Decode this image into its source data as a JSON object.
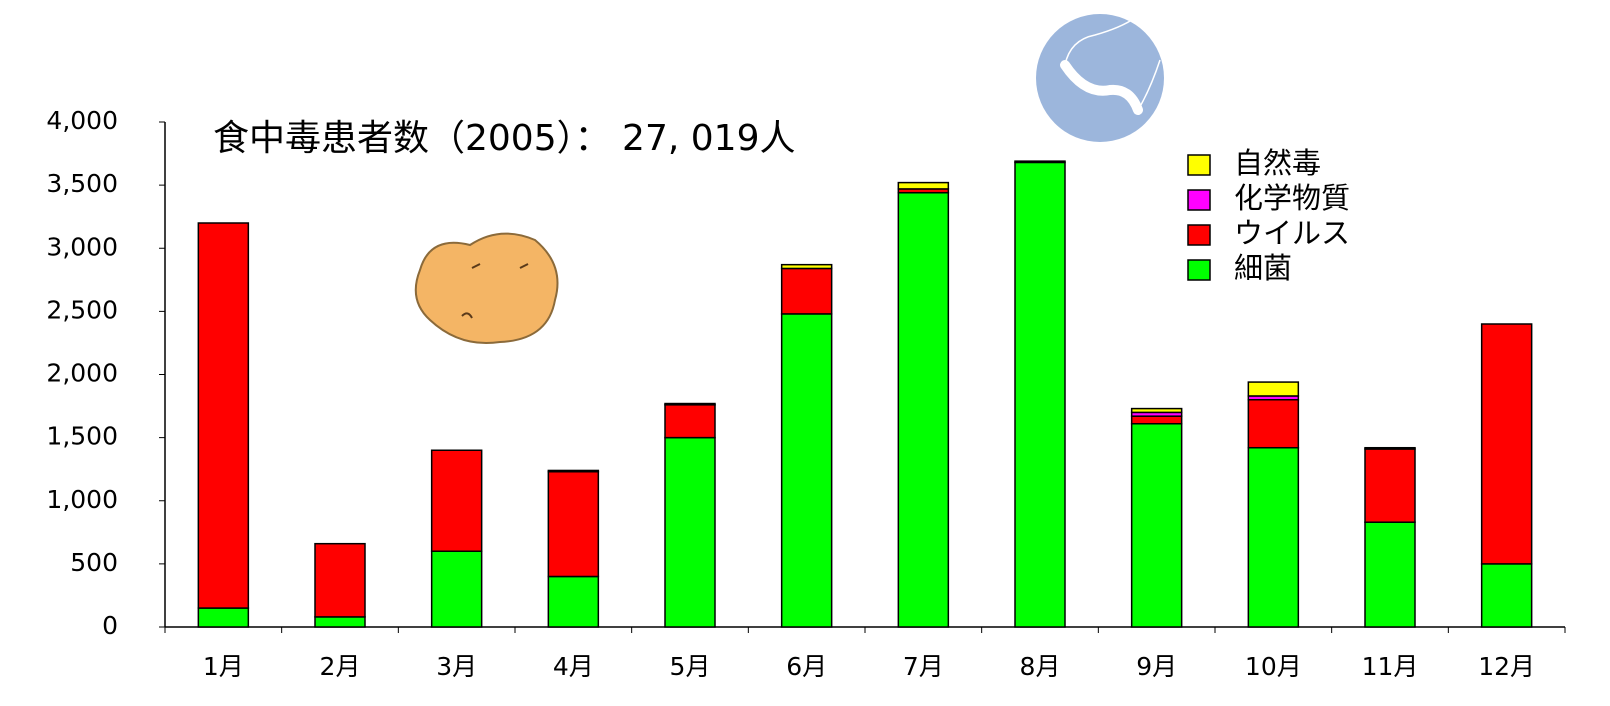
{
  "chart_data": {
    "type": "stacked-bar",
    "title": "食中毒患者数（2005）： 27, 019人",
    "categories": [
      "1月",
      "2月",
      "3月",
      "4月",
      "5月",
      "6月",
      "7月",
      "8月",
      "9月",
      "10月",
      "11月",
      "12月"
    ],
    "series": [
      {
        "name": "細菌",
        "color": "#00ff00",
        "values": [
          150,
          80,
          600,
          400,
          1500,
          2480,
          3440,
          3680,
          1610,
          1420,
          830,
          500
        ]
      },
      {
        "name": "ウイルス",
        "color": "#ff0000",
        "values": [
          3050,
          580,
          800,
          830,
          260,
          360,
          30,
          10,
          60,
          380,
          580,
          1900
        ]
      },
      {
        "name": "化学物質",
        "color": "#ff00ff",
        "values": [
          0,
          0,
          0,
          0,
          0,
          0,
          0,
          0,
          30,
          30,
          0,
          0
        ]
      },
      {
        "name": "自然毒",
        "color": "#ffff00",
        "values": [
          0,
          0,
          0,
          10,
          10,
          30,
          50,
          0,
          30,
          110,
          10,
          0
        ]
      }
    ],
    "ylim": [
      0,
      4000
    ],
    "yticks": [
      0,
      500,
      {
        "value": 1000,
        "label": "1,000"
      },
      {
        "value": 1500,
        "label": "1,500"
      },
      {
        "value": 2000,
        "label": "2,000"
      },
      {
        "value": 2500,
        "label": "2,500"
      },
      {
        "value": 3000,
        "label": "3,000"
      },
      {
        "value": 3500,
        "label": "3,500"
      },
      {
        "value": 4000,
        "label": "4,000"
      }
    ],
    "grid": false
  }
}
